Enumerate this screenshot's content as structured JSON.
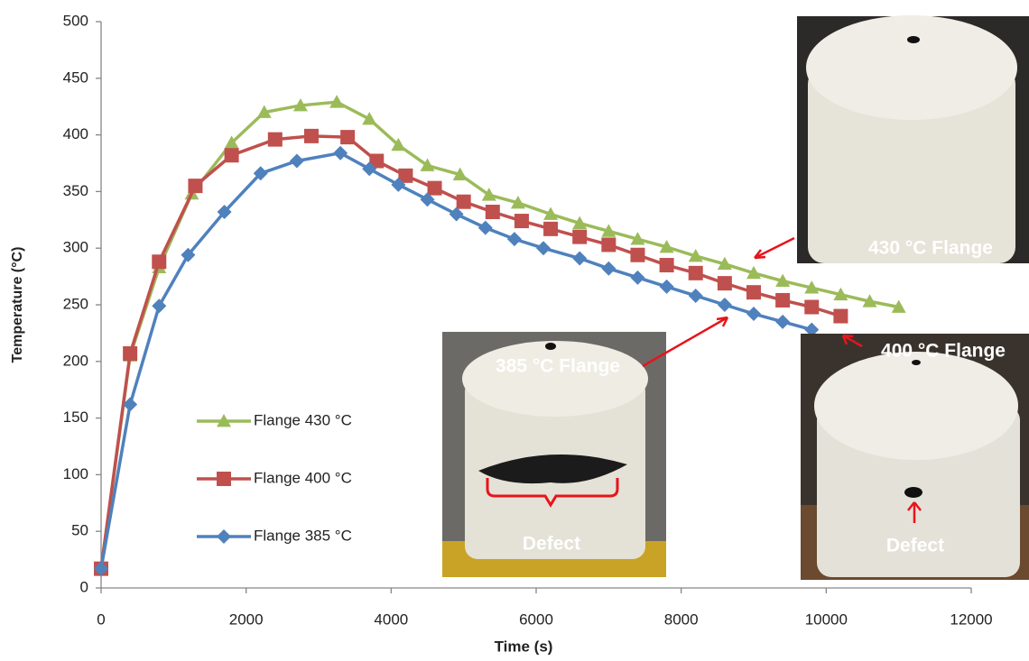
{
  "chart_data": {
    "type": "line",
    "x_label": "Time (s)",
    "y_label": "Temperature (°C)",
    "xlim": [
      0,
      12000
    ],
    "xticks": [
      0,
      2000,
      4000,
      6000,
      8000,
      10000,
      12000
    ],
    "ylim": [
      0,
      500
    ],
    "yticks": [
      0,
      50,
      100,
      150,
      200,
      250,
      300,
      350,
      400,
      450,
      500
    ],
    "grid": false,
    "series": [
      {
        "name": "Flange 430 °C",
        "color": "#9bbb59",
        "marker": "triangle",
        "x": [
          0,
          400,
          800,
          1250,
          1800,
          2250,
          2750,
          3250,
          3700,
          4100,
          4500,
          4950,
          5350,
          5750,
          6200,
          6600,
          7000,
          7400,
          7800,
          8200,
          8600,
          9000,
          9400,
          9800,
          10200,
          10600,
          11000
        ],
        "values": [
          17,
          205,
          283,
          348,
          393,
          420,
          426,
          429,
          414,
          391,
          373,
          365,
          347,
          340,
          330,
          322,
          315,
          308,
          301,
          293,
          286,
          278,
          271,
          265,
          259,
          253,
          248
        ]
      },
      {
        "name": "Flange 400 °C",
        "color": "#c0504d",
        "marker": "square",
        "x": [
          0,
          400,
          800,
          1300,
          1800,
          2400,
          2900,
          3400,
          3800,
          4200,
          4600,
          5000,
          5400,
          5800,
          6200,
          6600,
          7000,
          7400,
          7800,
          8200,
          8600,
          9000,
          9400,
          9800,
          10200
        ],
        "values": [
          17,
          207,
          288,
          355,
          382,
          396,
          399,
          398,
          377,
          364,
          353,
          341,
          332,
          324,
          317,
          310,
          303,
          294,
          285,
          278,
          269,
          261,
          254,
          248,
          240
        ]
      },
      {
        "name": "Flange 385 °C",
        "color": "#4f81bd",
        "marker": "diamond",
        "x": [
          0,
          400,
          800,
          1200,
          1700,
          2200,
          2700,
          3300,
          3700,
          4100,
          4500,
          4900,
          5300,
          5700,
          6100,
          6600,
          7000,
          7400,
          7800,
          8200,
          8600,
          9000,
          9400,
          9800
        ],
        "values": [
          17,
          162,
          249,
          294,
          332,
          366,
          377,
          384,
          370,
          356,
          343,
          330,
          318,
          308,
          300,
          291,
          282,
          274,
          266,
          258,
          250,
          242,
          235,
          228
        ]
      }
    ],
    "annotations": [
      "430 °C Flange",
      "400 °C Flange",
      "385 °C Flange",
      "Defect",
      "Defect"
    ]
  }
}
